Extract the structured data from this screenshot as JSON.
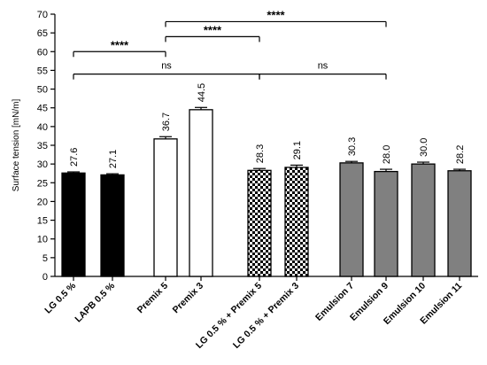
{
  "chart_data": {
    "type": "bar",
    "ylabel": "Surface tension [mN/m]",
    "ylim": [
      0,
      70
    ],
    "yticks": [
      0,
      5,
      10,
      15,
      20,
      25,
      30,
      35,
      40,
      45,
      50,
      55,
      60,
      65,
      70
    ],
    "grid": false,
    "categories": [
      "LG 0.5 %",
      "LAPB 0.5 %",
      "Premix 5",
      "Premix 3",
      "LG 0.5 % + Premix 5",
      "LG 0.5 % + Premix 3",
      "Emulsion 7",
      "Emulsion 9",
      "Emulsion 10",
      "Emulsion 11"
    ],
    "values": [
      27.6,
      27.1,
      36.7,
      44.5,
      28.3,
      29.1,
      30.3,
      28.0,
      30.0,
      28.2
    ],
    "value_labels": [
      "27.6",
      "27.1",
      "36.7",
      "44.5",
      "28.3",
      "29.1",
      "30.3",
      "28.0",
      "30.0",
      "28.2"
    ],
    "errors": [
      0.3,
      0.3,
      0.6,
      0.6,
      0.5,
      0.6,
      0.4,
      0.6,
      0.5,
      0.4
    ],
    "bar_styles": [
      "solid",
      "solid",
      "outline",
      "outline",
      "checker",
      "checker",
      "gray",
      "gray",
      "gray",
      "gray"
    ],
    "colors": {
      "solid": "#000000",
      "outline": "#ffffff",
      "gray": "#808080",
      "checker_dark": "#000000",
      "checker_light": "#ffffff"
    },
    "annotations": [
      {
        "label": "****",
        "from": 0,
        "to": 2,
        "y": 60
      },
      {
        "label": "****",
        "from": 2,
        "to": 4,
        "y": 64
      },
      {
        "label": "****",
        "from": 2,
        "to": 7,
        "y": 68
      },
      {
        "label": "ns",
        "from": 0,
        "to": 4,
        "y": 54
      },
      {
        "label": "ns",
        "from": 4,
        "to": 7,
        "y": 54
      }
    ]
  }
}
